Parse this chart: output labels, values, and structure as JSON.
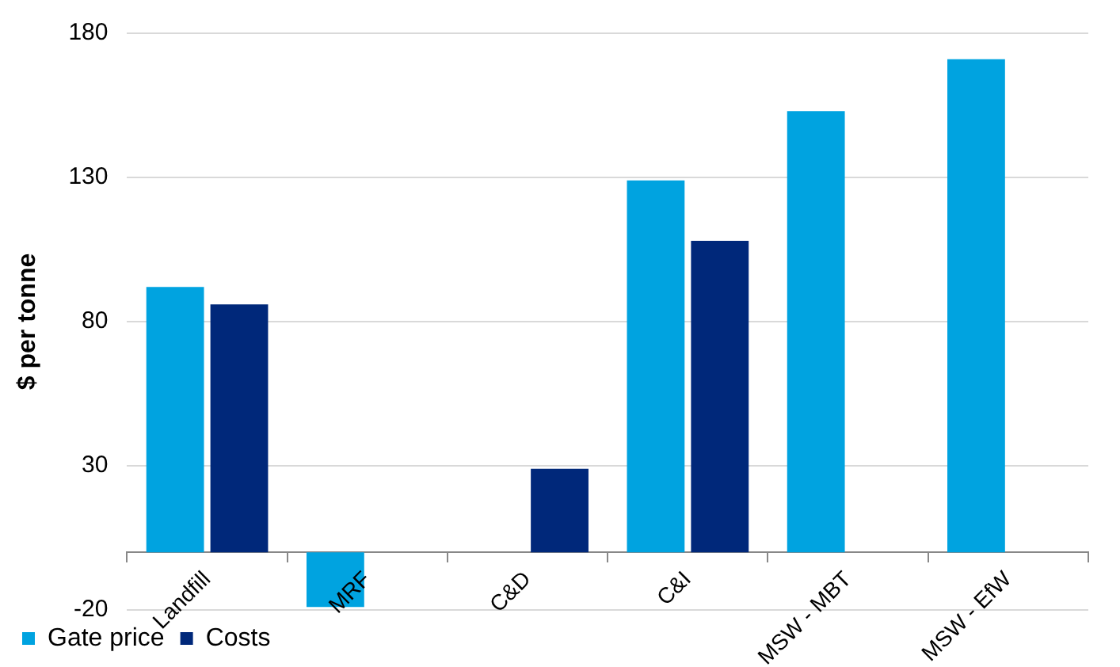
{
  "chart_data": {
    "type": "bar",
    "ylabel": "$ per tonne",
    "categories": [
      "Landfill",
      "MRF",
      "C&D",
      "C&I",
      "MSW - MBT",
      "MSW - EfW"
    ],
    "series": [
      {
        "name": "Gate price",
        "color": "#00a3e0",
        "values": [
          92,
          -19,
          null,
          129,
          153,
          171
        ]
      },
      {
        "name": "Costs",
        "color": "#00287a",
        "values": [
          86,
          null,
          29,
          108,
          null,
          null
        ]
      }
    ],
    "ylim": [
      -20,
      180
    ],
    "yticks": [
      -20,
      30,
      80,
      130,
      180
    ],
    "grid": "y",
    "legend": "bottom left"
  }
}
